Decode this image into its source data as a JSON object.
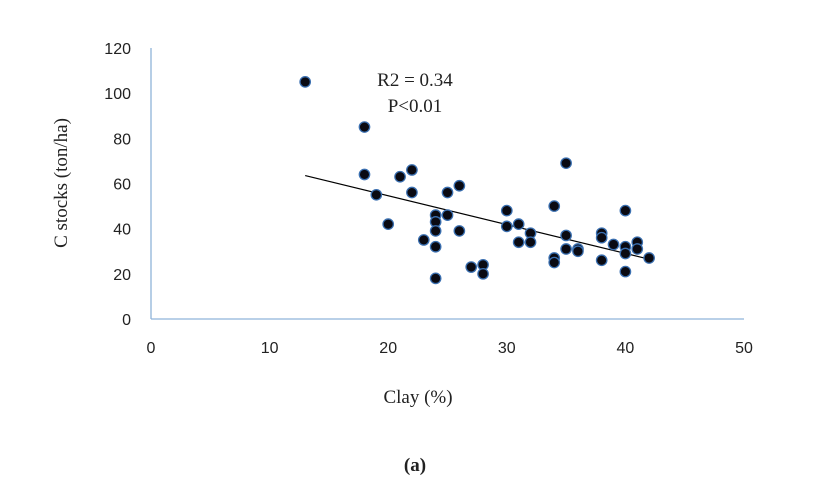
{
  "chart_data": {
    "type": "scatter",
    "title": "",
    "xlabel": "Clay (%)",
    "ylabel": "C stocks (ton/ha)",
    "xlim": [
      0,
      50
    ],
    "ylim": [
      0,
      120
    ],
    "xticks": [
      "0",
      "10",
      "20",
      "30",
      "40",
      "50"
    ],
    "yticks": [
      "0",
      "20",
      "40",
      "60",
      "80",
      "100",
      "120"
    ],
    "grid": false,
    "legend": "none",
    "annotations": [
      "R2 = 0.34",
      "P<0.01"
    ],
    "caption": "(a)",
    "points": [
      {
        "x": 13,
        "y": 105
      },
      {
        "x": 18,
        "y": 85
      },
      {
        "x": 18,
        "y": 64
      },
      {
        "x": 19,
        "y": 55
      },
      {
        "x": 20,
        "y": 42
      },
      {
        "x": 21,
        "y": 63
      },
      {
        "x": 22,
        "y": 66
      },
      {
        "x": 22,
        "y": 56
      },
      {
        "x": 23,
        "y": 35
      },
      {
        "x": 24,
        "y": 46
      },
      {
        "x": 24,
        "y": 43
      },
      {
        "x": 24,
        "y": 39
      },
      {
        "x": 24,
        "y": 32
      },
      {
        "x": 24,
        "y": 18
      },
      {
        "x": 25,
        "y": 56
      },
      {
        "x": 25,
        "y": 46
      },
      {
        "x": 26,
        "y": 59
      },
      {
        "x": 26,
        "y": 39
      },
      {
        "x": 27,
        "y": 23
      },
      {
        "x": 28,
        "y": 24
      },
      {
        "x": 28,
        "y": 20
      },
      {
        "x": 30,
        "y": 48
      },
      {
        "x": 30,
        "y": 41
      },
      {
        "x": 31,
        "y": 42
      },
      {
        "x": 31,
        "y": 34
      },
      {
        "x": 32,
        "y": 38
      },
      {
        "x": 32,
        "y": 34
      },
      {
        "x": 34,
        "y": 50
      },
      {
        "x": 34,
        "y": 27
      },
      {
        "x": 34,
        "y": 25
      },
      {
        "x": 35,
        "y": 69
      },
      {
        "x": 35,
        "y": 37
      },
      {
        "x": 35,
        "y": 31
      },
      {
        "x": 36,
        "y": 31
      },
      {
        "x": 36,
        "y": 30
      },
      {
        "x": 38,
        "y": 38
      },
      {
        "x": 38,
        "y": 36
      },
      {
        "x": 38,
        "y": 26
      },
      {
        "x": 39,
        "y": 33
      },
      {
        "x": 40,
        "y": 48
      },
      {
        "x": 40,
        "y": 32
      },
      {
        "x": 40,
        "y": 29
      },
      {
        "x": 40,
        "y": 21
      },
      {
        "x": 41,
        "y": 34
      },
      {
        "x": 41,
        "y": 31
      },
      {
        "x": 42,
        "y": 27
      }
    ],
    "trendline": {
      "x": [
        13,
        42
      ],
      "y": [
        63.5,
        26.5
      ]
    },
    "colors": {
      "marker_fill": "#0a0a12",
      "marker_edge": "#3a6fb0",
      "line": "#000000",
      "axis": "#8fb3d9"
    }
  }
}
